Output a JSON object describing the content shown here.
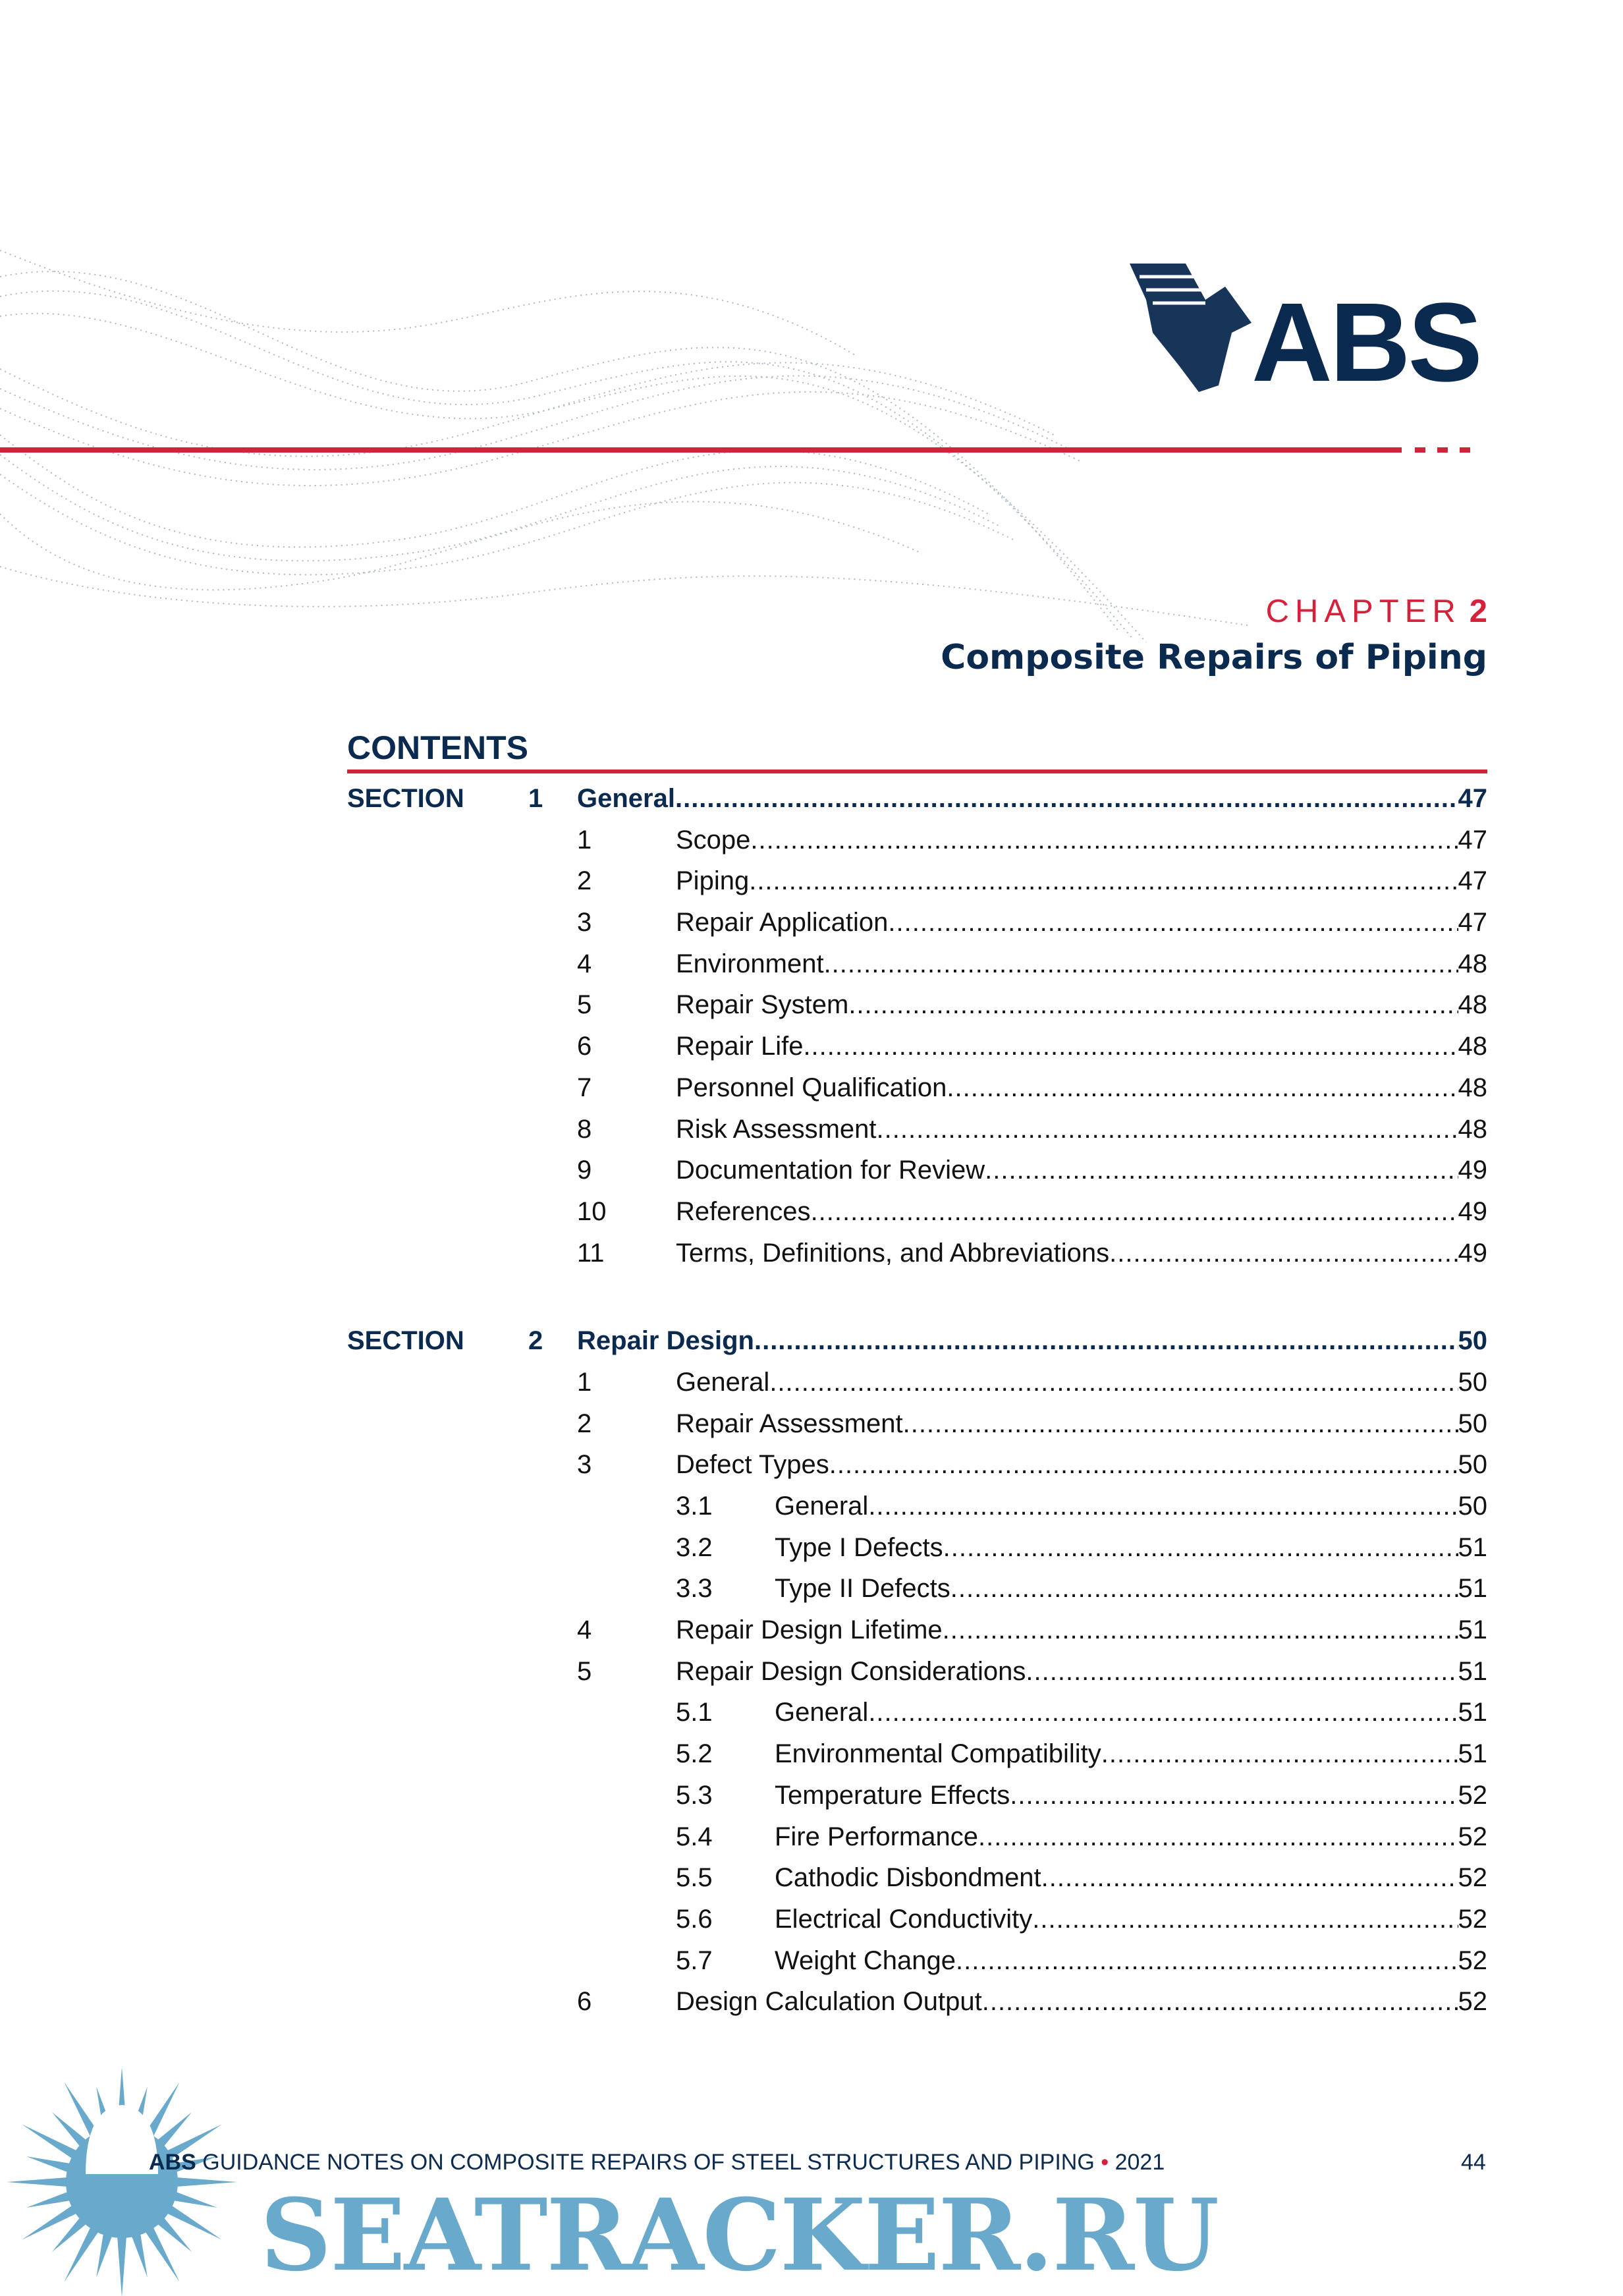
{
  "header": {
    "logo_text": "ABS",
    "chapter_label": "CHAPTER",
    "chapter_number": "2",
    "chapter_title": "Composite Repairs of Piping"
  },
  "contents": {
    "heading": "CONTENTS",
    "sections": [
      {
        "label": "SECTION",
        "number": "1",
        "title": "General",
        "page": "47",
        "items": [
          {
            "num": "1",
            "title": "Scope",
            "page": "47"
          },
          {
            "num": "2",
            "title": "Piping",
            "page": "47"
          },
          {
            "num": "3",
            "title": "Repair Application",
            "page": "47"
          },
          {
            "num": "4",
            "title": "Environment",
            "page": "48"
          },
          {
            "num": "5",
            "title": "Repair System",
            "page": "48"
          },
          {
            "num": "6",
            "title": "Repair Life",
            "page": "48"
          },
          {
            "num": "7",
            "title": "Personnel Qualification",
            "page": "48"
          },
          {
            "num": "8",
            "title": "Risk Assessment",
            "page": "48"
          },
          {
            "num": "9",
            "title": "Documentation for Review",
            "page": "49"
          },
          {
            "num": "10",
            "title": "References",
            "page": "49"
          },
          {
            "num": "11",
            "title": "Terms, Definitions, and Abbreviations",
            "page": "49"
          }
        ]
      },
      {
        "label": "SECTION",
        "number": "2",
        "title": "Repair Design",
        "page": "50",
        "items": [
          {
            "num": "1",
            "title": "General",
            "page": "50"
          },
          {
            "num": "2",
            "title": "Repair Assessment",
            "page": "50"
          },
          {
            "num": "3",
            "title": "Defect Types",
            "page": "50",
            "subitems": [
              {
                "num": "3.1",
                "title": "General",
                "page": "50"
              },
              {
                "num": "3.2",
                "title": "Type I Defects",
                "page": "51"
              },
              {
                "num": "3.3",
                "title": "Type II Defects",
                "page": "51"
              }
            ]
          },
          {
            "num": "4",
            "title": "Repair Design Lifetime",
            "page": "51"
          },
          {
            "num": "5",
            "title": "Repair Design Considerations",
            "page": "51",
            "subitems": [
              {
                "num": "5.1",
                "title": "General",
                "page": "51"
              },
              {
                "num": "5.2",
                "title": "Environmental Compatibility",
                "page": "51"
              },
              {
                "num": "5.3",
                "title": "Temperature Effects",
                "page": "52"
              },
              {
                "num": "5.4",
                "title": "Fire Performance",
                "page": "52"
              },
              {
                "num": "5.5",
                "title": "Cathodic Disbondment",
                "page": "52"
              },
              {
                "num": "5.6",
                "title": "Electrical Conductivity",
                "page": "52"
              },
              {
                "num": "5.7",
                "title": "Weight Change",
                "page": "52"
              }
            ]
          },
          {
            "num": "6",
            "title": "Design Calculation Output",
            "page": "52"
          }
        ]
      }
    ]
  },
  "footer": {
    "brand": "ABS",
    "text": "GUIDANCE NOTES ON COMPOSITE REPAIRS OF STEEL STRUCTURES AND PIPING",
    "separator": "•",
    "year": "2021",
    "page_number": "44"
  },
  "watermark": {
    "text": "SEATRACKER.RU"
  },
  "colors": {
    "navy": "#0b2a4f",
    "red": "#d5213a",
    "watermark_blue": "#69a9cb"
  }
}
